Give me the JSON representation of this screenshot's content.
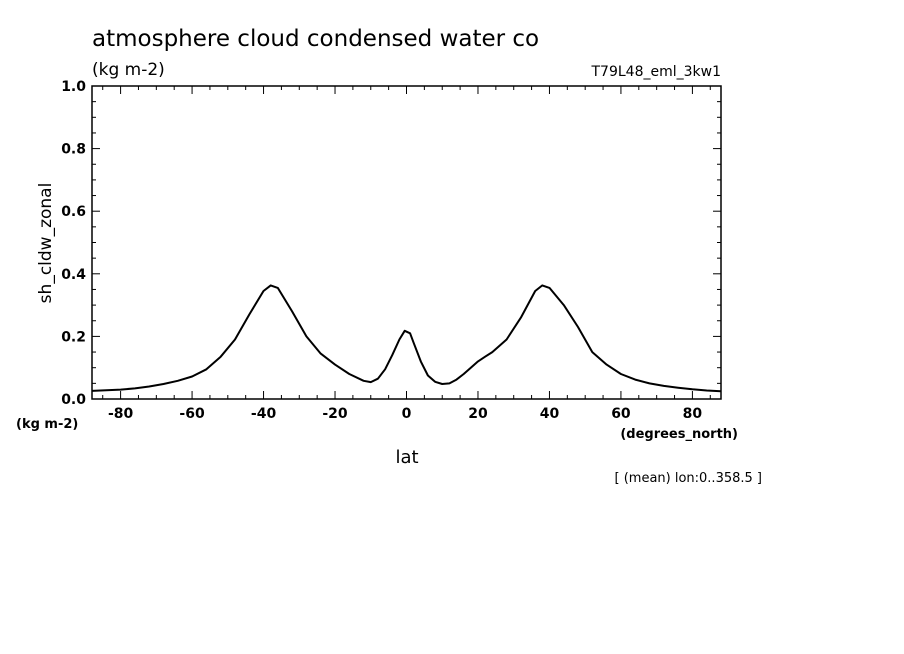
{
  "chart_data": {
    "type": "line",
    "title": "atmosphere cloud condensed water co",
    "units_label": "(kg m-2)",
    "run_label": "T79L48_eml_3kw1",
    "ylabel": "sh_cldw_zonal",
    "xlabel": "lat",
    "x_units": "(degrees_north)",
    "y_units": "(kg m-2)",
    "footnote": "[ (mean) lon:0..358.5 ]",
    "xlim": [
      -88,
      88
    ],
    "ylim": [
      0.0,
      1.0
    ],
    "x_ticks": [
      -80,
      -60,
      -40,
      -20,
      0,
      20,
      40,
      60,
      80
    ],
    "x_tick_labels": [
      "-80",
      "-60",
      "-40",
      "-20",
      "0",
      "20",
      "40",
      "60",
      "80"
    ],
    "y_ticks": [
      0.0,
      0.2,
      0.4,
      0.6,
      0.8,
      1.0
    ],
    "y_tick_labels": [
      "0.0",
      "0.2",
      "0.4",
      "0.6",
      "0.8",
      "1.0"
    ],
    "series": [
      {
        "name": "sh_cldw_zonal",
        "x": [
          -88,
          -84,
          -80,
          -76,
          -72,
          -68,
          -64,
          -60,
          -56,
          -52,
          -48,
          -44,
          -40,
          -38,
          -36,
          -32,
          -28,
          -24,
          -20,
          -16,
          -12,
          -10,
          -8,
          -6,
          -4,
          -2,
          -0.5,
          1,
          2,
          4,
          6,
          8,
          10,
          12,
          14,
          16,
          18,
          20,
          22,
          24,
          28,
          32,
          36,
          38,
          40,
          44,
          48,
          52,
          56,
          60,
          64,
          68,
          72,
          76,
          80,
          84,
          88
        ],
        "y": [
          0.026,
          0.028,
          0.03,
          0.034,
          0.04,
          0.048,
          0.058,
          0.072,
          0.095,
          0.135,
          0.19,
          0.27,
          0.345,
          0.363,
          0.355,
          0.28,
          0.2,
          0.145,
          0.11,
          0.08,
          0.058,
          0.054,
          0.065,
          0.095,
          0.14,
          0.19,
          0.218,
          0.21,
          0.18,
          0.12,
          0.075,
          0.055,
          0.048,
          0.05,
          0.062,
          0.08,
          0.1,
          0.12,
          0.135,
          0.15,
          0.19,
          0.26,
          0.345,
          0.363,
          0.355,
          0.3,
          0.23,
          0.15,
          0.11,
          0.08,
          0.062,
          0.05,
          0.042,
          0.036,
          0.031,
          0.027,
          0.025
        ]
      }
    ]
  }
}
